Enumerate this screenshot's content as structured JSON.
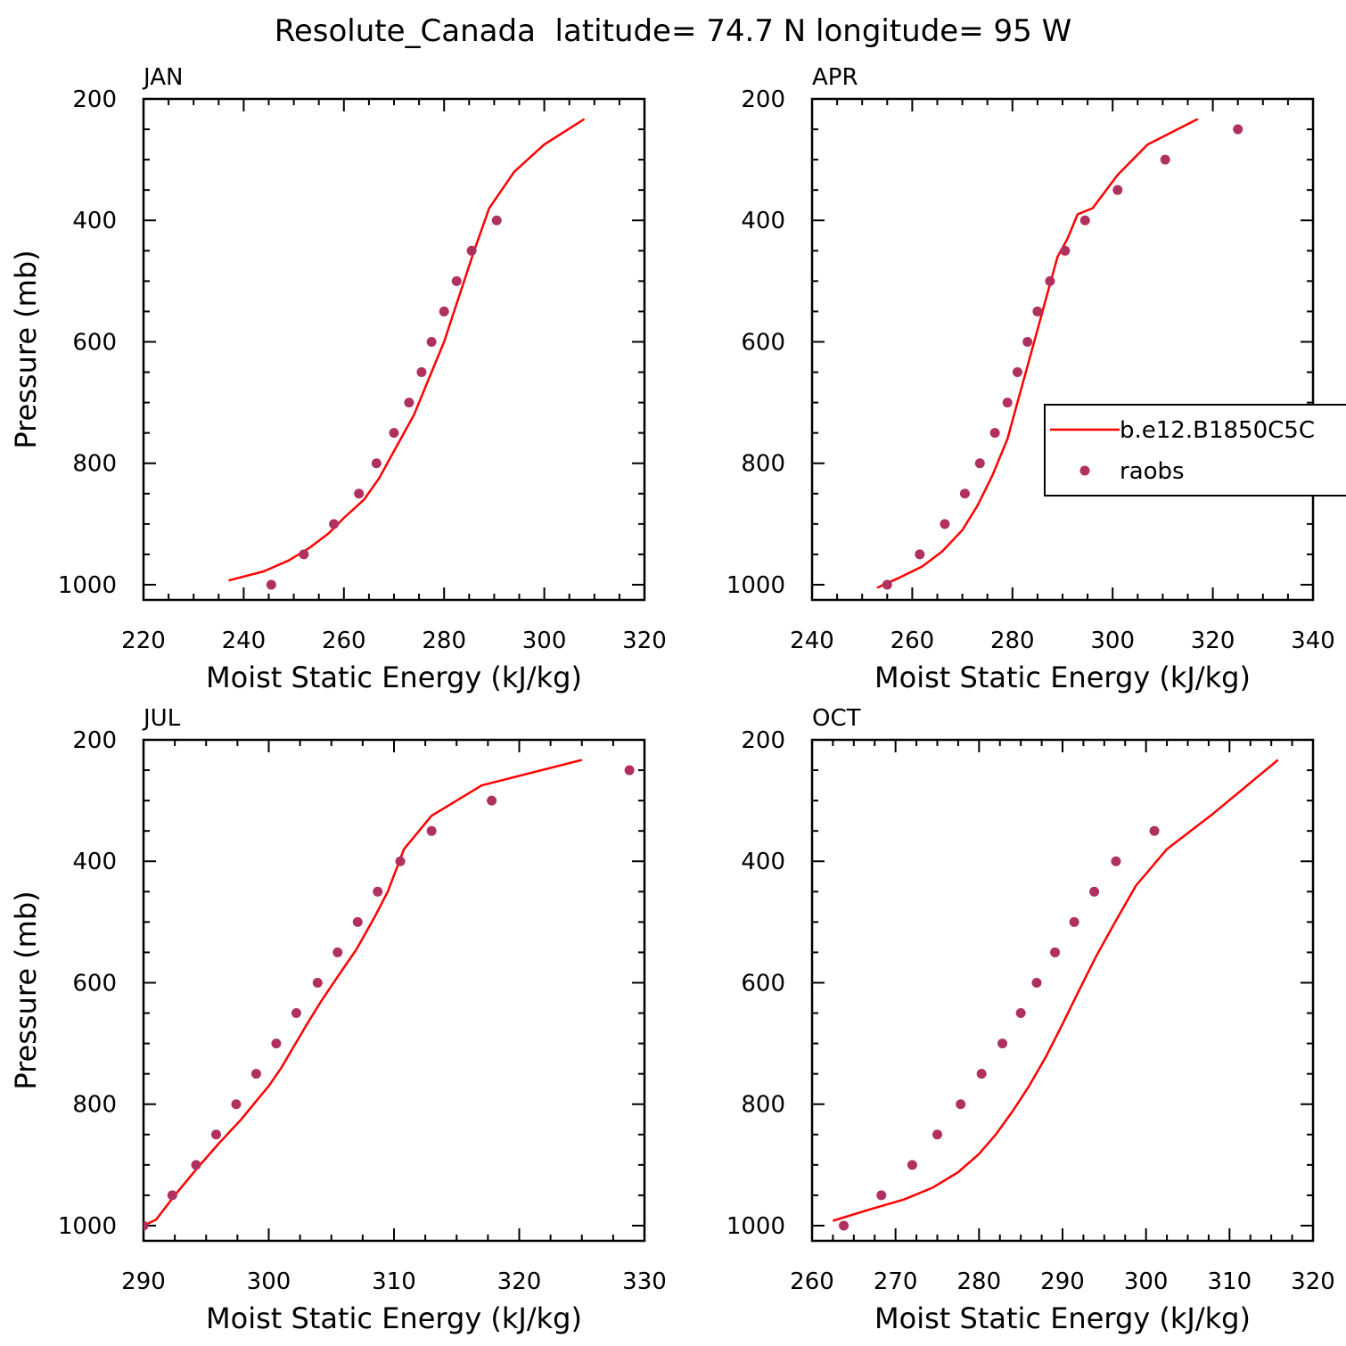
{
  "figure": {
    "title": "Resolute_Canada  latitude= 74.7 N longitude= 95 W",
    "colors": {
      "model_line": "#ff0000",
      "obs_marker": "#b03060",
      "axes": "#000000"
    }
  },
  "chart_data": [
    {
      "type": "line",
      "panel_label": "JAN",
      "xlabel": "Moist Static Energy (kJ/kg)",
      "ylabel": "Pressure (mb)",
      "xlim": [
        220,
        320
      ],
      "ylim": [
        1025,
        200
      ],
      "y_inverted": true,
      "xticks": [
        220,
        240,
        260,
        280,
        300,
        320
      ],
      "yticks": [
        200,
        400,
        600,
        800,
        1000
      ],
      "series": [
        {
          "kind": "line",
          "x": [
            237,
            244,
            249,
            253,
            257,
            260,
            264,
            267,
            270,
            274,
            277,
            280,
            282,
            284,
            286,
            289,
            294,
            300,
            308
          ],
          "y": [
            993,
            978,
            960,
            940,
            915,
            890,
            860,
            825,
            780,
            720,
            660,
            600,
            550,
            500,
            450,
            380,
            320,
            275,
            233
          ]
        },
        {
          "kind": "scatter",
          "x": [
            245.5,
            252,
            258,
            263,
            266.5,
            270,
            273,
            275.5,
            277.5,
            280,
            282.5,
            285.5,
            290.5
          ],
          "y": [
            1000,
            950,
            900,
            850,
            800,
            750,
            700,
            650,
            600,
            550,
            500,
            450,
            400
          ]
        }
      ]
    },
    {
      "type": "line",
      "panel_label": "APR",
      "xlabel": "Moist Static Energy (kJ/kg)",
      "ylabel": "",
      "xlim": [
        240,
        340
      ],
      "ylim": [
        1025,
        200
      ],
      "y_inverted": true,
      "xticks": [
        240,
        260,
        280,
        300,
        320,
        340
      ],
      "yticks": [
        200,
        400,
        600,
        800,
        1000
      ],
      "legend": {
        "position": "right",
        "entries": [
          {
            "label": "b.e12.B1850C5C",
            "kind": "line"
          },
          {
            "label": "raobs",
            "kind": "marker"
          }
        ]
      },
      "series": [
        {
          "name": "b.e12.B1850C5C",
          "kind": "line",
          "x": [
            253,
            257,
            262,
            266,
            270,
            273,
            276,
            279,
            281,
            283,
            285,
            287,
            289,
            291,
            293,
            296,
            301,
            307,
            317
          ],
          "y": [
            1005,
            990,
            970,
            945,
            910,
            870,
            820,
            760,
            700,
            640,
            580,
            520,
            460,
            430,
            390,
            380,
            325,
            275,
            233
          ]
        },
        {
          "name": "raobs",
          "kind": "scatter",
          "x": [
            255,
            261.5,
            266.5,
            270.5,
            273.5,
            276.5,
            279,
            281,
            283,
            285,
            287.5,
            290.5,
            294.5,
            301,
            310.5,
            325
          ],
          "y": [
            1000,
            950,
            900,
            850,
            800,
            750,
            700,
            650,
            600,
            550,
            500,
            450,
            400,
            350,
            300,
            250
          ]
        }
      ]
    },
    {
      "type": "line",
      "panel_label": "JUL",
      "xlabel": "Moist Static Energy (kJ/kg)",
      "ylabel": "Pressure (mb)",
      "xlim": [
        290,
        330
      ],
      "ylim": [
        1025,
        200
      ],
      "y_inverted": true,
      "xticks": [
        290,
        300,
        310,
        320,
        330
      ],
      "yticks": [
        200,
        400,
        600,
        800,
        1000
      ],
      "series": [
        {
          "kind": "line",
          "x": [
            290,
            291,
            292.5,
            294.3,
            296,
            297.8,
            299,
            300,
            301,
            302,
            303,
            304.2,
            305.5,
            307,
            308.5,
            309.5,
            310.8,
            313,
            317,
            325
          ],
          "y": [
            1000,
            990,
            950,
            905,
            865,
            825,
            795,
            770,
            740,
            705,
            670,
            630,
            590,
            545,
            490,
            450,
            380,
            325,
            275,
            233
          ]
        },
        {
          "kind": "scatter",
          "x": [
            290,
            292.3,
            294.2,
            295.8,
            297.4,
            299,
            300.6,
            302.2,
            303.9,
            305.5,
            307.1,
            308.7,
            310.5,
            313,
            317.8,
            328.8
          ],
          "y": [
            1000,
            950,
            900,
            850,
            800,
            750,
            700,
            650,
            600,
            550,
            500,
            450,
            400,
            350,
            300,
            250
          ]
        }
      ]
    },
    {
      "type": "line",
      "panel_label": "OCT",
      "xlabel": "Moist Static Energy (kJ/kg)",
      "ylabel": "",
      "xlim": [
        260,
        320
      ],
      "ylim": [
        1025,
        200
      ],
      "y_inverted": true,
      "xticks": [
        260,
        270,
        280,
        290,
        300,
        310,
        320
      ],
      "yticks": [
        200,
        400,
        600,
        800,
        1000
      ],
      "series": [
        {
          "kind": "line",
          "x": [
            262.5,
            267,
            271,
            274.5,
            277.5,
            280,
            282,
            284,
            286,
            288,
            290,
            292,
            294,
            296.3,
            298.8,
            302.5,
            308,
            315.8
          ],
          "y": [
            992,
            973,
            957,
            937,
            912,
            882,
            850,
            812,
            770,
            722,
            668,
            612,
            557,
            500,
            440,
            380,
            322,
            233
          ]
        },
        {
          "kind": "scatter",
          "x": [
            263.8,
            268.3,
            272,
            275,
            277.8,
            280.3,
            282.8,
            285,
            286.9,
            289.1,
            291.4,
            293.8,
            296.4,
            301
          ],
          "y": [
            1000,
            950,
            900,
            850,
            800,
            750,
            700,
            650,
            600,
            550,
            500,
            450,
            400,
            350
          ]
        }
      ]
    }
  ]
}
